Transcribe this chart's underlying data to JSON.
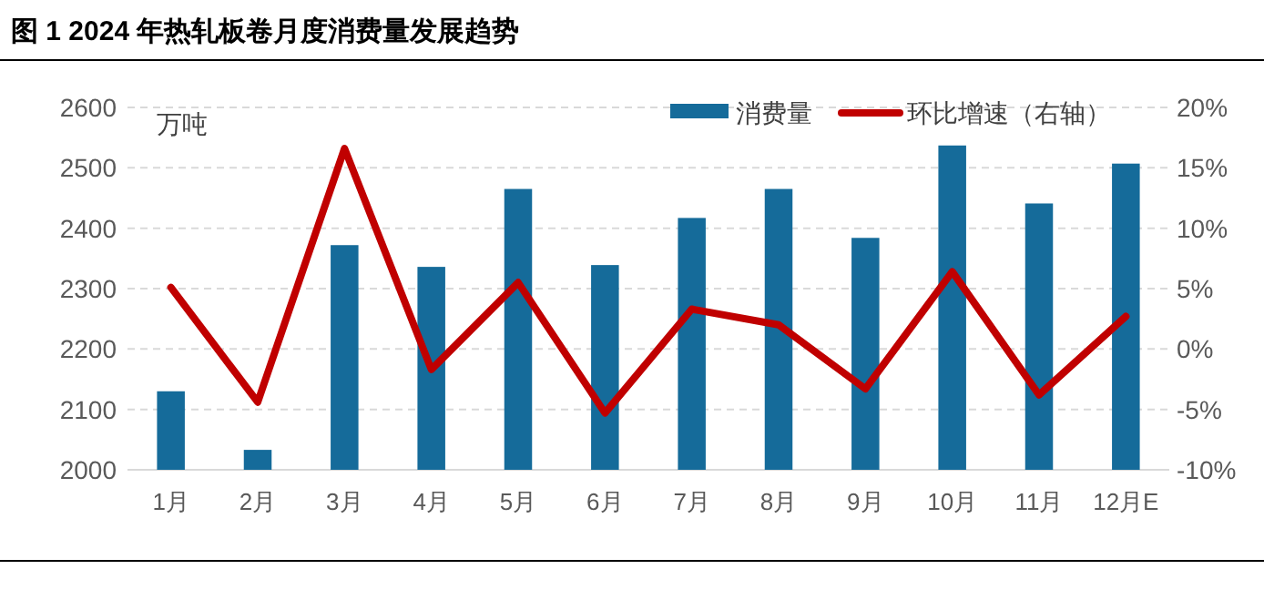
{
  "chart_data": {
    "type": "bar",
    "title": "图 1  2024 年热轧板卷月度消费量发展趋势",
    "ylabel": "万吨",
    "categories": [
      "1月",
      "2月",
      "3月",
      "4月",
      "5月",
      "6月",
      "7月",
      "8月",
      "9月",
      "10月",
      "11月",
      "12月E"
    ],
    "series": [
      {
        "name": "消费量",
        "color": "#156b9a",
        "values": [
          2130,
          2033,
          2372,
          2336,
          2465,
          2339,
          2417,
          2465,
          2384,
          2537,
          2441,
          2507
        ]
      },
      {
        "name": "环比增速（右轴）",
        "type": "line",
        "axis": "y2",
        "color": "#c00000",
        "values": [
          5.1,
          -4.4,
          16.6,
          -1.7,
          5.5,
          -5.3,
          3.3,
          2.0,
          -3.3,
          6.4,
          -3.8,
          2.7
        ]
      }
    ],
    "ylim": [
      2000,
      2600
    ],
    "yticks": [
      2000,
      2100,
      2200,
      2300,
      2400,
      2500,
      2600
    ],
    "y2lim": [
      -10,
      20
    ],
    "y2ticks": [
      {
        "value": -10,
        "label": "-10%"
      },
      {
        "value": -5,
        "label": "-5%"
      },
      {
        "value": 0,
        "label": "0%"
      },
      {
        "value": 5,
        "label": "5%"
      },
      {
        "value": 10,
        "label": "10%"
      },
      {
        "value": 15,
        "label": "15%"
      },
      {
        "value": 20,
        "label": "20%"
      }
    ],
    "grid": "y",
    "legend": "top right",
    "marker": "none",
    "line_style": "solid"
  }
}
